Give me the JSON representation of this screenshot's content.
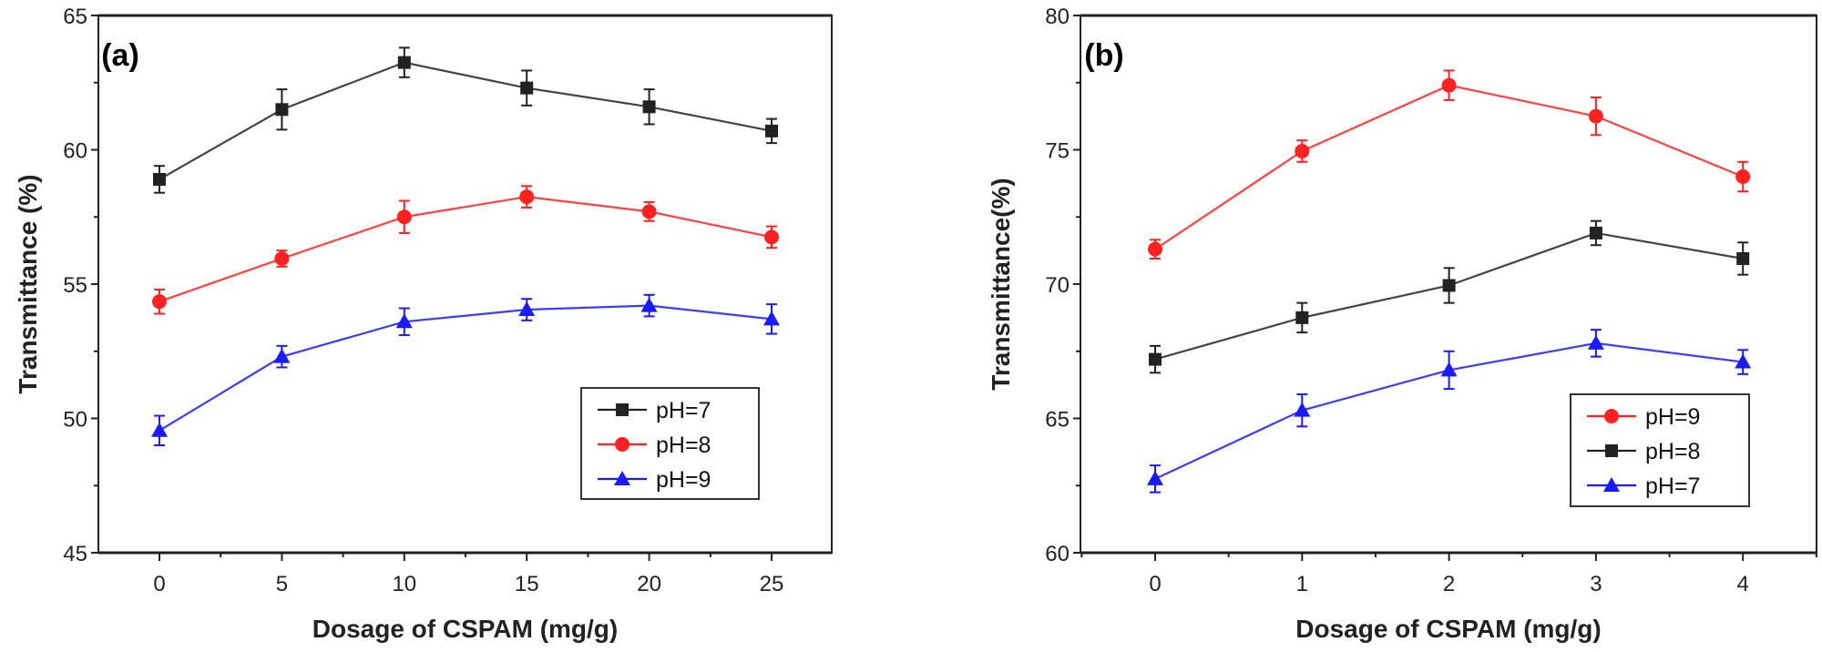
{
  "chart_data": [
    {
      "type": "line",
      "panel_label": "(a)",
      "xlabel": "Dosage of CSPAM (mg/g)",
      "ylabel": "Transmittance (%)",
      "x": [
        0,
        5,
        10,
        15,
        20,
        25
      ],
      "xlim": [
        -2.5,
        27.7
      ],
      "ylim": [
        45,
        65
      ],
      "xticks": [
        0,
        5,
        10,
        15,
        20,
        25
      ],
      "yticks": [
        45,
        50,
        55,
        60,
        65
      ],
      "legend": "bottom-right",
      "grid": false,
      "series": [
        {
          "name": "pH=7",
          "color": "#222222",
          "marker": "square",
          "values": [
            58.9,
            61.5,
            63.25,
            62.3,
            61.6,
            60.7
          ],
          "errors": [
            0.5,
            0.75,
            0.55,
            0.65,
            0.65,
            0.45
          ]
        },
        {
          "name": "pH=8",
          "color": "#ff2020",
          "marker": "circle",
          "values": [
            54.35,
            55.95,
            57.5,
            58.25,
            57.7,
            56.75
          ],
          "errors": [
            0.45,
            0.3,
            0.6,
            0.4,
            0.35,
            0.4
          ]
        },
        {
          "name": "pH=9",
          "color": "#1a1aff",
          "marker": "triangle",
          "values": [
            49.55,
            52.3,
            53.6,
            54.05,
            54.2,
            53.7
          ],
          "errors": [
            0.55,
            0.4,
            0.5,
            0.4,
            0.4,
            0.55
          ]
        }
      ]
    },
    {
      "type": "line",
      "panel_label": "(b)",
      "xlabel": "Dosage of CSPAM (mg/g)",
      "ylabel": "Transmittance(%)",
      "x": [
        0,
        1,
        2,
        3,
        4
      ],
      "xlim": [
        -0.5,
        4.5
      ],
      "ylim": [
        60,
        80
      ],
      "xticks": [
        0,
        1,
        2,
        3,
        4
      ],
      "yticks": [
        60,
        65,
        70,
        75,
        80
      ],
      "legend": "bottom-right",
      "grid": false,
      "series": [
        {
          "name": "pH=9",
          "color": "#ff2020",
          "marker": "circle",
          "values": [
            71.3,
            74.95,
            77.4,
            76.25,
            74.0
          ],
          "errors": [
            0.35,
            0.4,
            0.55,
            0.7,
            0.55
          ]
        },
        {
          "name": "pH=8",
          "color": "#222222",
          "marker": "square",
          "values": [
            67.2,
            68.75,
            69.95,
            71.9,
            70.95
          ],
          "errors": [
            0.5,
            0.55,
            0.65,
            0.45,
            0.6
          ]
        },
        {
          "name": "pH=7",
          "color": "#1a1aff",
          "marker": "triangle",
          "values": [
            62.75,
            65.3,
            66.8,
            67.8,
            67.1
          ],
          "errors": [
            0.5,
            0.6,
            0.7,
            0.5,
            0.45
          ]
        }
      ]
    }
  ]
}
